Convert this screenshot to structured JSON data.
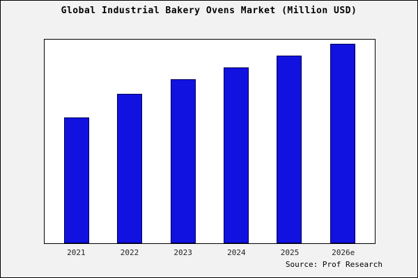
{
  "title": "Global Industrial Bakery Ovens Market (Million USD)",
  "source": "Source: Prof Research",
  "colors": {
    "bar_fill": "#1212e0",
    "bar_border": "#000055",
    "plot_bg": "#ffffff",
    "page_bg": "#f2f2f2"
  },
  "chart_data": {
    "type": "bar",
    "categories": [
      "2021",
      "2022",
      "2023",
      "2024",
      "2025",
      "2026e"
    ],
    "values": [
      63,
      75,
      82,
      88,
      94,
      100
    ],
    "title": "Global Industrial Bakery Ovens Market (Million USD)",
    "xlabel": "",
    "ylabel": "",
    "ylim": [
      0,
      100
    ],
    "grid": false,
    "legend": false,
    "legend_position": "none"
  }
}
